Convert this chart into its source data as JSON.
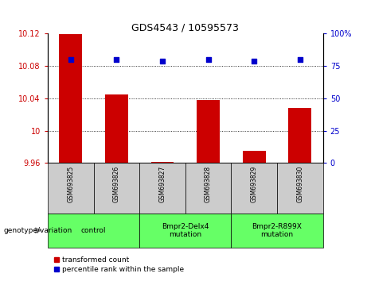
{
  "title": "GDS4543 / 10595573",
  "samples": [
    "GSM693825",
    "GSM693826",
    "GSM693827",
    "GSM693828",
    "GSM693829",
    "GSM693830"
  ],
  "red_values": [
    10.119,
    10.045,
    9.961,
    10.038,
    9.975,
    10.028
  ],
  "blue_values": [
    80,
    80,
    79,
    80,
    79,
    80
  ],
  "ylim_left": [
    9.96,
    10.12
  ],
  "ylim_right": [
    0,
    100
  ],
  "yticks_left": [
    9.96,
    10.0,
    10.04,
    10.08,
    10.12
  ],
  "yticks_right": [
    0,
    25,
    50,
    75,
    100
  ],
  "ytick_labels_left": [
    "9.96",
    "10",
    "10.04",
    "10.08",
    "10.12"
  ],
  "ytick_labels_right": [
    "0",
    "25",
    "50",
    "75",
    "100%"
  ],
  "groups": [
    {
      "label": "control",
      "indices": [
        0,
        1
      ]
    },
    {
      "label": "Bmpr2-Delx4\nmutation",
      "indices": [
        2,
        3
      ]
    },
    {
      "label": "Bmpr2-R899X\nmutation",
      "indices": [
        4,
        5
      ]
    }
  ],
  "red_color": "#cc0000",
  "blue_color": "#0000cc",
  "bar_width": 0.5,
  "legend_red": "transformed count",
  "legend_blue": "percentile rank within the sample",
  "genotype_label": "genotype/variation",
  "bg_color": "#ffffff",
  "sample_cell_bg": "#cccccc",
  "group_cell_bg": "#66ff66"
}
